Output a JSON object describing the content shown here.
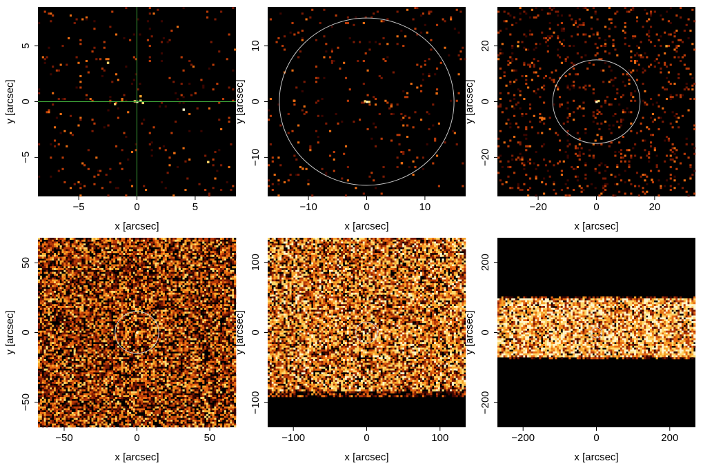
{
  "figure": {
    "background": "#ffffff"
  },
  "colormap": [
    "#000000",
    "#3a0500",
    "#7a1a04",
    "#b83a08",
    "#e86b12",
    "#f7a42a",
    "#ffd66a",
    "#fff5c8"
  ],
  "chart_data": [
    {
      "type": "heatmap",
      "xlabel": "x [arcsec]",
      "ylabel": "y [arcsec]",
      "xlim": [
        -8.5,
        8.5
      ],
      "ylim": [
        -8.5,
        8.5
      ],
      "xticks": [
        -5,
        0,
        5
      ],
      "yticks": [
        -5,
        0,
        5
      ],
      "xtick_labels": [
        "−5",
        "0",
        "5"
      ],
      "ytick_labels": [
        "−5",
        "0",
        "5"
      ],
      "crosshair": {
        "x": 0,
        "y": 0,
        "color": "#3fa83a"
      },
      "circle": null,
      "background_level": 0.03,
      "band": null,
      "bright_sources": [
        {
          "x": 0,
          "y": 0,
          "level": 1.0
        },
        {
          "x": 0.3,
          "y": 0.1,
          "level": 0.9
        },
        {
          "x": -0.2,
          "y": 0.05,
          "level": 0.85
        },
        {
          "x": 0.5,
          "y": -0.1,
          "level": 0.8
        },
        {
          "x": -1.9,
          "y": -0.2,
          "level": 0.85
        },
        {
          "x": 4.0,
          "y": -0.7,
          "level": 0.95
        },
        {
          "x": 6.1,
          "y": -5.4,
          "level": 0.9
        },
        {
          "x": 3.2,
          "y": -4.6,
          "level": 0.6
        },
        {
          "x": -2.5,
          "y": 3.5,
          "level": 0.8
        },
        {
          "x": 0.3,
          "y": 0.5,
          "level": 0.7
        }
      ]
    },
    {
      "type": "heatmap",
      "xlabel": "x [arcsec]",
      "ylabel": "y [arcsec]",
      "xlim": [
        -17,
        17
      ],
      "ylim": [
        -17,
        17
      ],
      "xticks": [
        -10,
        0,
        10
      ],
      "yticks": [
        -10,
        0,
        10
      ],
      "xtick_labels": [
        "−10",
        "0",
        "10"
      ],
      "ytick_labels": [
        "−10",
        "0",
        "10"
      ],
      "crosshair": null,
      "circle": {
        "x": 0,
        "y": 0,
        "r": 15,
        "color": "#c8c8c8"
      },
      "background_level": 0.03,
      "band": null,
      "bright_sources": [
        {
          "x": 0,
          "y": 0,
          "level": 1.0
        },
        {
          "x": 0.4,
          "y": 0,
          "level": 0.9
        },
        {
          "x": -0.3,
          "y": 0.1,
          "level": 0.8
        },
        {
          "x": 4.2,
          "y": -0.8,
          "level": 0.6
        },
        {
          "x": -12.5,
          "y": 0.2,
          "level": 0.6
        },
        {
          "x": 12.0,
          "y": 1.5,
          "level": 0.5
        },
        {
          "x": 6.0,
          "y": -11.0,
          "level": 0.5
        },
        {
          "x": -11.0,
          "y": -12.0,
          "level": 0.5
        }
      ]
    },
    {
      "type": "heatmap",
      "xlabel": "x [arcsec]",
      "ylabel": "y [arcsec]",
      "xlim": [
        -34,
        34
      ],
      "ylim": [
        -34,
        34
      ],
      "xticks": [
        -20,
        0,
        20
      ],
      "yticks": [
        -20,
        0,
        20
      ],
      "xtick_labels": [
        "−20",
        "0",
        "20"
      ],
      "ytick_labels": [
        "−20",
        "0",
        "20"
      ],
      "crosshair": null,
      "circle": {
        "x": 0,
        "y": 0,
        "r": 15,
        "color": "#c8c8c8"
      },
      "background_level": 0.09,
      "band": null,
      "bright_sources": [
        {
          "x": 0,
          "y": 0,
          "level": 1.0
        },
        {
          "x": 0.7,
          "y": 0.3,
          "level": 0.9
        },
        {
          "x": -27.0,
          "y": 20.0,
          "level": 0.7
        },
        {
          "x": 24.0,
          "y": 20.0,
          "level": 0.7
        },
        {
          "x": 19.0,
          "y": -28.0,
          "level": 0.6
        },
        {
          "x": -18.0,
          "y": -6.0,
          "level": 0.6
        }
      ]
    },
    {
      "type": "heatmap",
      "xlabel": "x [arcsec]",
      "ylabel": "y [arcsec]",
      "xlim": [
        -68,
        68
      ],
      "ylim": [
        -68,
        68
      ],
      "xticks": [
        -50,
        0,
        50
      ],
      "yticks": [
        -50,
        0,
        50
      ],
      "xtick_labels": [
        "−50",
        "0",
        "50"
      ],
      "ytick_labels": [
        "−50",
        "0",
        "50"
      ],
      "crosshair": null,
      "circle": {
        "x": 0,
        "y": 0,
        "r": 15,
        "color": "#c8c8c8"
      },
      "background_level": 0.5,
      "band": null,
      "bright_sources": [
        {
          "x": 0,
          "y": 0,
          "level": 1.0
        },
        {
          "x": -1.5,
          "y": 12.0,
          "level": 0.8
        }
      ]
    },
    {
      "type": "heatmap",
      "xlabel": "x [arcsec]",
      "ylabel": "y [arcsec]",
      "xlim": [
        -135,
        135
      ],
      "ylim": [
        -135,
        135
      ],
      "xticks": [
        -100,
        0,
        100
      ],
      "yticks": [
        -100,
        0,
        100
      ],
      "xtick_labels": [
        "−100",
        "0",
        "100"
      ],
      "ytick_labels": [
        "−100",
        "0",
        "100"
      ],
      "crosshair": null,
      "circle": {
        "x": 0,
        "y": 0,
        "r": 15,
        "color": "#c8c8c8"
      },
      "background_level": 0.72,
      "band": {
        "ymin": -85,
        "ymax": 135
      },
      "bright_sources": []
    },
    {
      "type": "heatmap",
      "xlabel": "x [arcsec]",
      "ylabel": "y [arcsec]",
      "xlim": [
        -270,
        270
      ],
      "ylim": [
        -270,
        270
      ],
      "xticks": [
        -200,
        0,
        200
      ],
      "yticks": [
        -200,
        0,
        200
      ],
      "xtick_labels": [
        "−200",
        "0",
        "200"
      ],
      "ytick_labels": [
        "−200",
        "0",
        "200"
      ],
      "crosshair": null,
      "circle": {
        "x": 0,
        "y": 0,
        "r": 15,
        "color": "#c8c8c8"
      },
      "background_level": 0.88,
      "band": {
        "ymin": -68,
        "ymax": 95
      },
      "bright_sources": []
    }
  ]
}
